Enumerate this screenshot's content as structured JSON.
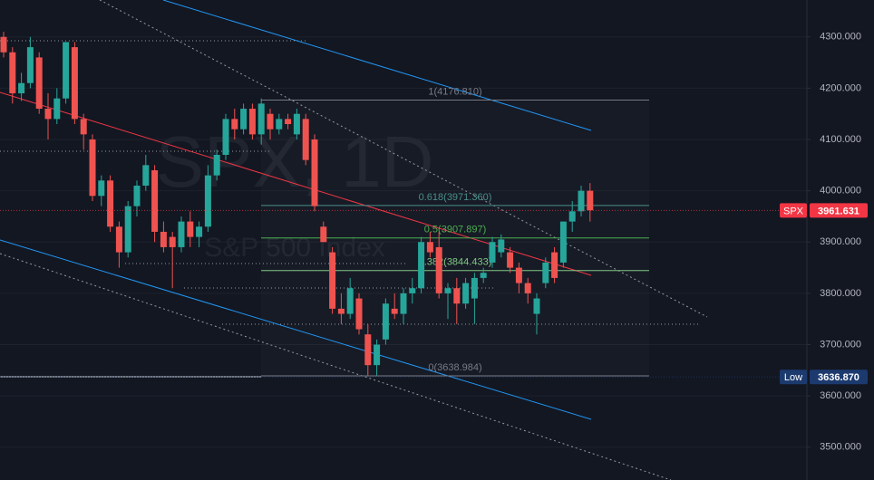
{
  "chart_data": {
    "type": "candlestick",
    "watermark": "SPX, 1D",
    "watermark_subtitle": "S&P 500 Index",
    "up_color": "#26a69a",
    "down_color": "#ef5350",
    "ylim": [
      3436,
      4372
    ],
    "yticks": [
      {
        "value": 3500,
        "label": "3500.000"
      },
      {
        "value": 3600,
        "label": "3600.000"
      },
      {
        "value": 3700,
        "label": "3700.000"
      },
      {
        "value": 3800,
        "label": "3800.000"
      },
      {
        "value": 3900,
        "label": "3900.000"
      },
      {
        "value": 4000,
        "label": "4000.000"
      },
      {
        "value": 4100,
        "label": "4100.000"
      },
      {
        "value": 4200,
        "label": "4200.000"
      },
      {
        "value": 4300,
        "label": "4300.000"
      }
    ],
    "grid": true,
    "ohlc": [
      [
        4300,
        4310,
        4260,
        4270
      ],
      [
        4270,
        4280,
        4170,
        4190
      ],
      [
        4190,
        4230,
        4175,
        4210
      ],
      [
        4210,
        4300,
        4200,
        4280
      ],
      [
        4260,
        4270,
        4150,
        4160
      ],
      [
        4160,
        4190,
        4100,
        4140
      ],
      [
        4140,
        4200,
        4130,
        4180
      ],
      [
        4180,
        4290,
        4170,
        4290
      ],
      [
        4280,
        4290,
        4130,
        4140
      ],
      [
        4140,
        4150,
        4080,
        4110
      ],
      [
        4100,
        4110,
        3980,
        3990
      ],
      [
        3990,
        4030,
        3970,
        4020
      ],
      [
        4020,
        4030,
        3920,
        3930
      ],
      [
        3930,
        3940,
        3850,
        3880
      ],
      [
        3880,
        3980,
        3870,
        3970
      ],
      [
        3970,
        4020,
        3950,
        4010
      ],
      [
        4010,
        4070,
        4000,
        4050
      ],
      [
        4040,
        4050,
        3900,
        3920
      ],
      [
        3920,
        3940,
        3880,
        3890
      ],
      [
        3910,
        3920,
        3810,
        3890
      ],
      [
        3890,
        3950,
        3880,
        3940
      ],
      [
        3940,
        3960,
        3890,
        3910
      ],
      [
        3910,
        3940,
        3890,
        3930
      ],
      [
        3930,
        4050,
        3920,
        4030
      ],
      [
        4030,
        4080,
        4020,
        4070
      ],
      [
        4070,
        4150,
        4060,
        4140
      ],
      [
        4140,
        4160,
        4100,
        4120
      ],
      [
        4120,
        4170,
        4110,
        4160
      ],
      [
        4160,
        4170,
        4100,
        4110
      ],
      [
        4110,
        4180,
        4090,
        4170
      ],
      [
        4150,
        4160,
        4100,
        4120
      ],
      [
        4120,
        4150,
        4110,
        4140
      ],
      [
        4140,
        4150,
        4120,
        4130
      ],
      [
        4110,
        4160,
        4100,
        4150
      ],
      [
        4140,
        4150,
        4050,
        4060
      ],
      [
        4100,
        4110,
        3960,
        3970
      ],
      [
        3930,
        3940,
        3900,
        3900
      ],
      [
        3880,
        3890,
        3760,
        3770
      ],
      [
        3770,
        3800,
        3740,
        3760
      ],
      [
        3760,
        3830,
        3750,
        3810
      ],
      [
        3790,
        3800,
        3720,
        3730
      ],
      [
        3720,
        3740,
        3640,
        3660
      ],
      [
        3660,
        3710,
        3640,
        3700
      ],
      [
        3710,
        3790,
        3700,
        3780
      ],
      [
        3770,
        3800,
        3750,
        3760
      ],
      [
        3760,
        3810,
        3740,
        3800
      ],
      [
        3800,
        3830,
        3780,
        3810
      ],
      [
        3810,
        3910,
        3800,
        3900
      ],
      [
        3900,
        3920,
        3870,
        3880
      ],
      [
        3890,
        3920,
        3790,
        3800
      ],
      [
        3800,
        3820,
        3750,
        3810
      ],
      [
        3810,
        3830,
        3740,
        3780
      ],
      [
        3780,
        3830,
        3770,
        3820
      ],
      [
        3790,
        3840,
        3740,
        3830
      ],
      [
        3830,
        3850,
        3820,
        3840
      ],
      [
        3860,
        3910,
        3850,
        3900
      ],
      [
        3880,
        3915,
        3870,
        3905
      ],
      [
        3880,
        3890,
        3840,
        3850
      ],
      [
        3850,
        3860,
        3800,
        3820
      ],
      [
        3820,
        3830,
        3780,
        3800
      ],
      [
        3760,
        3800,
        3720,
        3790
      ],
      [
        3820,
        3870,
        3810,
        3860
      ],
      [
        3880,
        3890,
        3820,
        3830
      ],
      [
        3860,
        3940,
        3850,
        3940
      ],
      [
        3940,
        3980,
        3920,
        3960
      ],
      [
        3960,
        4010,
        3950,
        4000
      ],
      [
        4000,
        4015,
        3940,
        3962
      ]
    ],
    "fib_levels": [
      {
        "label": "1(4176.810)",
        "value": 4176.81,
        "color": "#787b86"
      },
      {
        "label": "0.618(3971.360)",
        "value": 3971.36,
        "color": "#4a8f8a"
      },
      {
        "label": "0.5(3907.897)",
        "value": 3907.897,
        "color": "#4caf50"
      },
      {
        "label": "0.382(3844.433)",
        "value": 3844.433,
        "color": "#81c784"
      },
      {
        "label": "0(3638.984)",
        "value": 3638.984,
        "color": "#787b86"
      }
    ],
    "price_labels": [
      {
        "name": "SPX",
        "value": 3961.631,
        "color": "#f23645"
      },
      {
        "name": "Low",
        "value": 3636.87,
        "value_label": "3636.870",
        "color": "#1c3a6e"
      }
    ]
  }
}
